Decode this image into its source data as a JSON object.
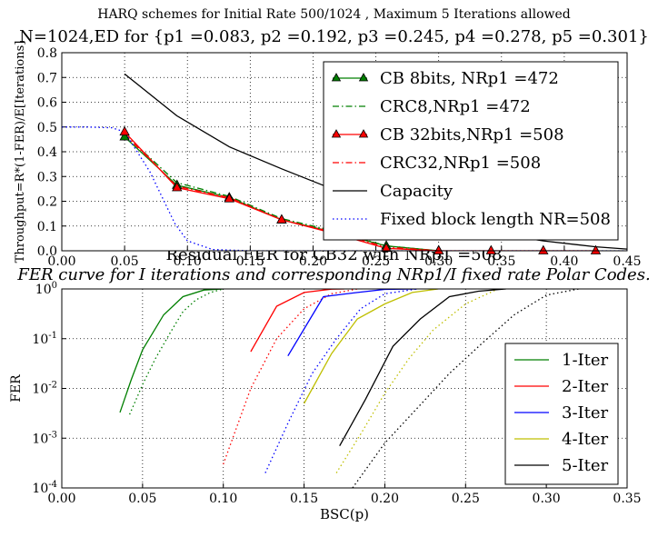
{
  "titles": {
    "top_line1": "HARQ schemes for Initial Rate   500/1024 , Maximum 5 Iterations allowed",
    "top_line2": "N=1024,ED for {p1 =0.083, p2 =0.192, p3 =0.245, p4 =0.278, p5 =0.301}",
    "bottom_line1": "Residual FER for CB32 with NRp1 =508",
    "bottom_line2": "FER curve for I iterations and corresponding NRp1/I fixed rate Polar Codes."
  },
  "chart_data": [
    {
      "type": "line",
      "ylabel": "Throughput=R*(1-FER)/E[Iterations]",
      "xlabel": "",
      "xlim": [
        0.0,
        0.45
      ],
      "ylim": [
        0.0,
        0.8
      ],
      "xticks": [
        "0.00",
        "0.05",
        "0.10",
        "0.15",
        "0.20",
        "0.25",
        "0.30",
        "0.35",
        "0.40",
        "0.45"
      ],
      "yticks": [
        "0.0",
        "0.1",
        "0.2",
        "0.3",
        "0.4",
        "0.5",
        "0.6",
        "0.7",
        "0.8"
      ],
      "grid": true,
      "legend_position": "top-right",
      "series": [
        {
          "name": "CB 8bits, NRp1 =472",
          "color": "#007f00",
          "style": "solid",
          "marker": "triangle",
          "x": [
            0.05,
            0.0917,
            0.1333,
            0.175,
            0.2167,
            0.2583,
            0.3
          ],
          "y": [
            0.46,
            0.265,
            0.215,
            0.125,
            0.075,
            0.02,
            0.0
          ]
        },
        {
          "name": "CRC8,NRp1 =472",
          "color": "#007f00",
          "style": "dashdot",
          "marker": "none",
          "x": [
            0.05,
            0.0917,
            0.1333,
            0.175,
            0.2167,
            0.2583,
            0.3
          ],
          "y": [
            0.47,
            0.275,
            0.22,
            0.13,
            0.08,
            0.02,
            0.0
          ]
        },
        {
          "name": "CB 32bits,NRp1 =508",
          "color": "#ff0000",
          "style": "solid",
          "marker": "triangle",
          "x": [
            0.05,
            0.0917,
            0.1333,
            0.175,
            0.2167,
            0.2583,
            0.3,
            0.3417,
            0.3833,
            0.425
          ],
          "y": [
            0.48,
            0.255,
            0.21,
            0.125,
            0.07,
            0.01,
            0.0,
            0.0,
            0.0,
            0.0
          ]
        },
        {
          "name": "CRC32,NRp1 =508",
          "color": "#ff0000",
          "style": "dashdot",
          "marker": "none",
          "x": [
            0.05,
            0.0917,
            0.1333,
            0.175,
            0.2167,
            0.2583,
            0.3
          ],
          "y": [
            0.47,
            0.26,
            0.215,
            0.125,
            0.075,
            0.015,
            0.0
          ]
        },
        {
          "name": "Capacity",
          "color": "#000000",
          "style": "solid",
          "marker": "none",
          "x": [
            0.05,
            0.0917,
            0.1333,
            0.175,
            0.2167,
            0.2583,
            0.3,
            0.3417,
            0.3833,
            0.425,
            0.45
          ],
          "y": [
            0.714,
            0.545,
            0.42,
            0.331,
            0.247,
            0.176,
            0.119,
            0.074,
            0.04,
            0.016,
            0.007
          ]
        },
        {
          "name": "Fixed block length NR=508",
          "color": "#0000ff",
          "style": "dotted",
          "marker": "none",
          "x": [
            0.0,
            0.02,
            0.04,
            0.05,
            0.07,
            0.09,
            0.1,
            0.12,
            0.15,
            0.2,
            0.3,
            0.45
          ],
          "y": [
            0.5,
            0.5,
            0.497,
            0.48,
            0.32,
            0.11,
            0.04,
            0.005,
            0.0,
            0.0,
            0.0,
            0.0
          ]
        }
      ]
    },
    {
      "type": "line",
      "xlabel": "BSC(p)",
      "ylabel": "FER",
      "xlim": [
        0.0,
        0.35
      ],
      "ylim": [
        0.0001,
        1.0
      ],
      "yscale": "log",
      "xticks": [
        "0.00",
        "0.05",
        "0.10",
        "0.15",
        "0.20",
        "0.25",
        "0.30",
        "0.35"
      ],
      "yticks": [
        1.0,
        0.1,
        0.01,
        0.001,
        0.0001
      ],
      "grid": true,
      "legend_position": "lower-right",
      "series": [
        {
          "name": "1-Iter",
          "color": "#007f00",
          "style": "solid",
          "x": [
            0.036,
            0.043,
            0.05,
            0.063,
            0.075,
            0.088,
            0.1
          ],
          "y": [
            0.0033,
            0.015,
            0.06,
            0.3,
            0.7,
            0.95,
            1.0
          ]
        },
        {
          "name": "",
          "color": "#007f00",
          "style": "dotted",
          "x": [
            0.042,
            0.05,
            0.058,
            0.067,
            0.075,
            0.083,
            0.092,
            0.1
          ],
          "y": [
            0.003,
            0.012,
            0.04,
            0.13,
            0.35,
            0.6,
            0.85,
            1.0
          ]
        },
        {
          "name": "2-Iter",
          "color": "#ff0000",
          "style": "solid",
          "x": [
            0.117,
            0.133,
            0.15,
            0.167,
            0.175
          ],
          "y": [
            0.055,
            0.45,
            0.85,
            0.99,
            1.0
          ]
        },
        {
          "name": "",
          "color": "#ff0000",
          "style": "dotted",
          "x": [
            0.1,
            0.117,
            0.133,
            0.15,
            0.167,
            0.183
          ],
          "y": [
            0.0003,
            0.01,
            0.1,
            0.4,
            0.8,
            1.0
          ]
        },
        {
          "name": "3-Iter",
          "color": "#0000ff",
          "style": "solid",
          "x": [
            0.14,
            0.162,
            0.183,
            0.2,
            0.22
          ],
          "y": [
            0.045,
            0.7,
            0.85,
            0.98,
            1.0
          ]
        },
        {
          "name": "",
          "color": "#0000ff",
          "style": "dotted",
          "x": [
            0.126,
            0.14,
            0.155,
            0.17,
            0.185,
            0.2,
            0.22
          ],
          "y": [
            0.0002,
            0.002,
            0.02,
            0.1,
            0.4,
            0.8,
            1.0
          ]
        },
        {
          "name": "4-Iter",
          "color": "#bfbf00",
          "style": "solid",
          "x": [
            0.15,
            0.167,
            0.183,
            0.2,
            0.217,
            0.233
          ],
          "y": [
            0.005,
            0.05,
            0.25,
            0.5,
            0.85,
            1.0
          ]
        },
        {
          "name": "",
          "color": "#bfbf00",
          "style": "dotted",
          "x": [
            0.17,
            0.185,
            0.2,
            0.215,
            0.23,
            0.25,
            0.27
          ],
          "y": [
            0.0002,
            0.0012,
            0.008,
            0.04,
            0.15,
            0.5,
            1.0
          ]
        },
        {
          "name": "5-Iter",
          "color": "#000000",
          "style": "solid",
          "x": [
            0.172,
            0.188,
            0.205,
            0.222,
            0.24,
            0.258,
            0.275
          ],
          "y": [
            0.0007,
            0.006,
            0.07,
            0.25,
            0.7,
            0.9,
            1.0
          ]
        },
        {
          "name": "",
          "color": "#000000",
          "style": "dotted",
          "x": [
            0.18,
            0.2,
            0.22,
            0.24,
            0.26,
            0.28,
            0.3,
            0.32
          ],
          "y": [
            0.0001,
            0.0008,
            0.004,
            0.02,
            0.08,
            0.3,
            0.75,
            1.0
          ]
        }
      ]
    }
  ]
}
